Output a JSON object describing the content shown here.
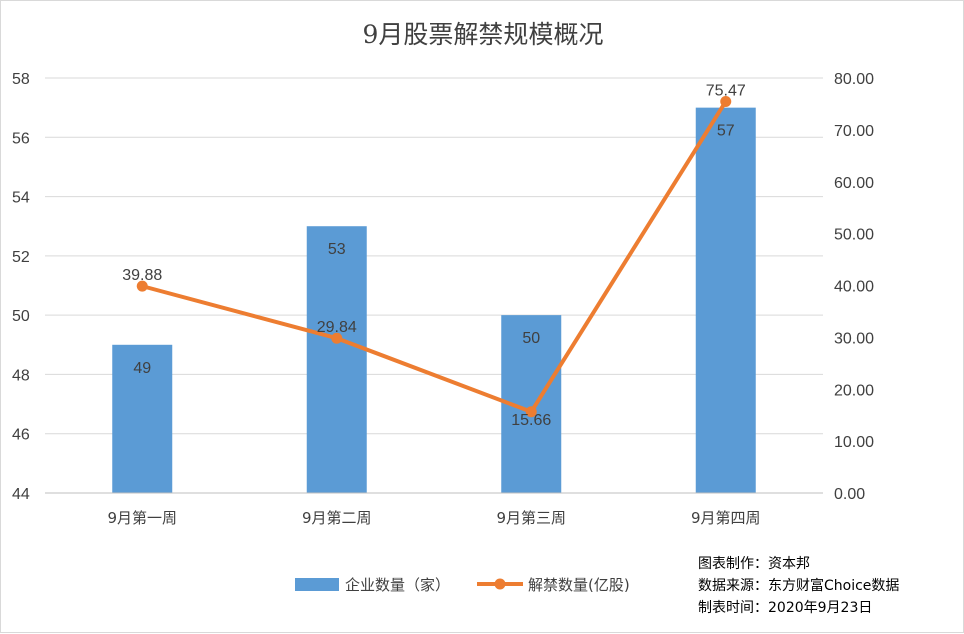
{
  "chart_data": {
    "type": "bar",
    "title": "9月股票解禁规模概况",
    "categories": [
      "9月第一周",
      "9月第二周",
      "9月第三周",
      "9月第四周"
    ],
    "series": [
      {
        "name": "企业数量（家）",
        "type": "bar",
        "axis": "left",
        "color": "#5b9bd5",
        "values": [
          49,
          53,
          50,
          57
        ]
      },
      {
        "name": "解禁数量(亿股)",
        "type": "line",
        "axis": "right",
        "color": "#ed7d31",
        "values": [
          39.88,
          29.84,
          15.66,
          75.47
        ]
      }
    ],
    "left_axis": {
      "min": 44,
      "max": 58,
      "step": 2,
      "tick_labels": [
        "44",
        "46",
        "48",
        "50",
        "52",
        "54",
        "56",
        "58"
      ]
    },
    "right_axis": {
      "min": 0,
      "max": 80,
      "step": 10,
      "tick_labels": [
        "0.00",
        "10.00",
        "20.00",
        "30.00",
        "40.00",
        "50.00",
        "60.00",
        "70.00",
        "80.00"
      ]
    },
    "bar_labels": [
      "49",
      "53",
      "50",
      "57"
    ],
    "line_labels": [
      "39.88",
      "29.84",
      "15.66",
      "75.47"
    ],
    "grid": true,
    "legend_position": "bottom"
  },
  "source_notes": {
    "maker": "图表制作：资本邦",
    "source": "数据来源：东方财富Choice数据",
    "date": "制表时间：2020年9月23日"
  }
}
